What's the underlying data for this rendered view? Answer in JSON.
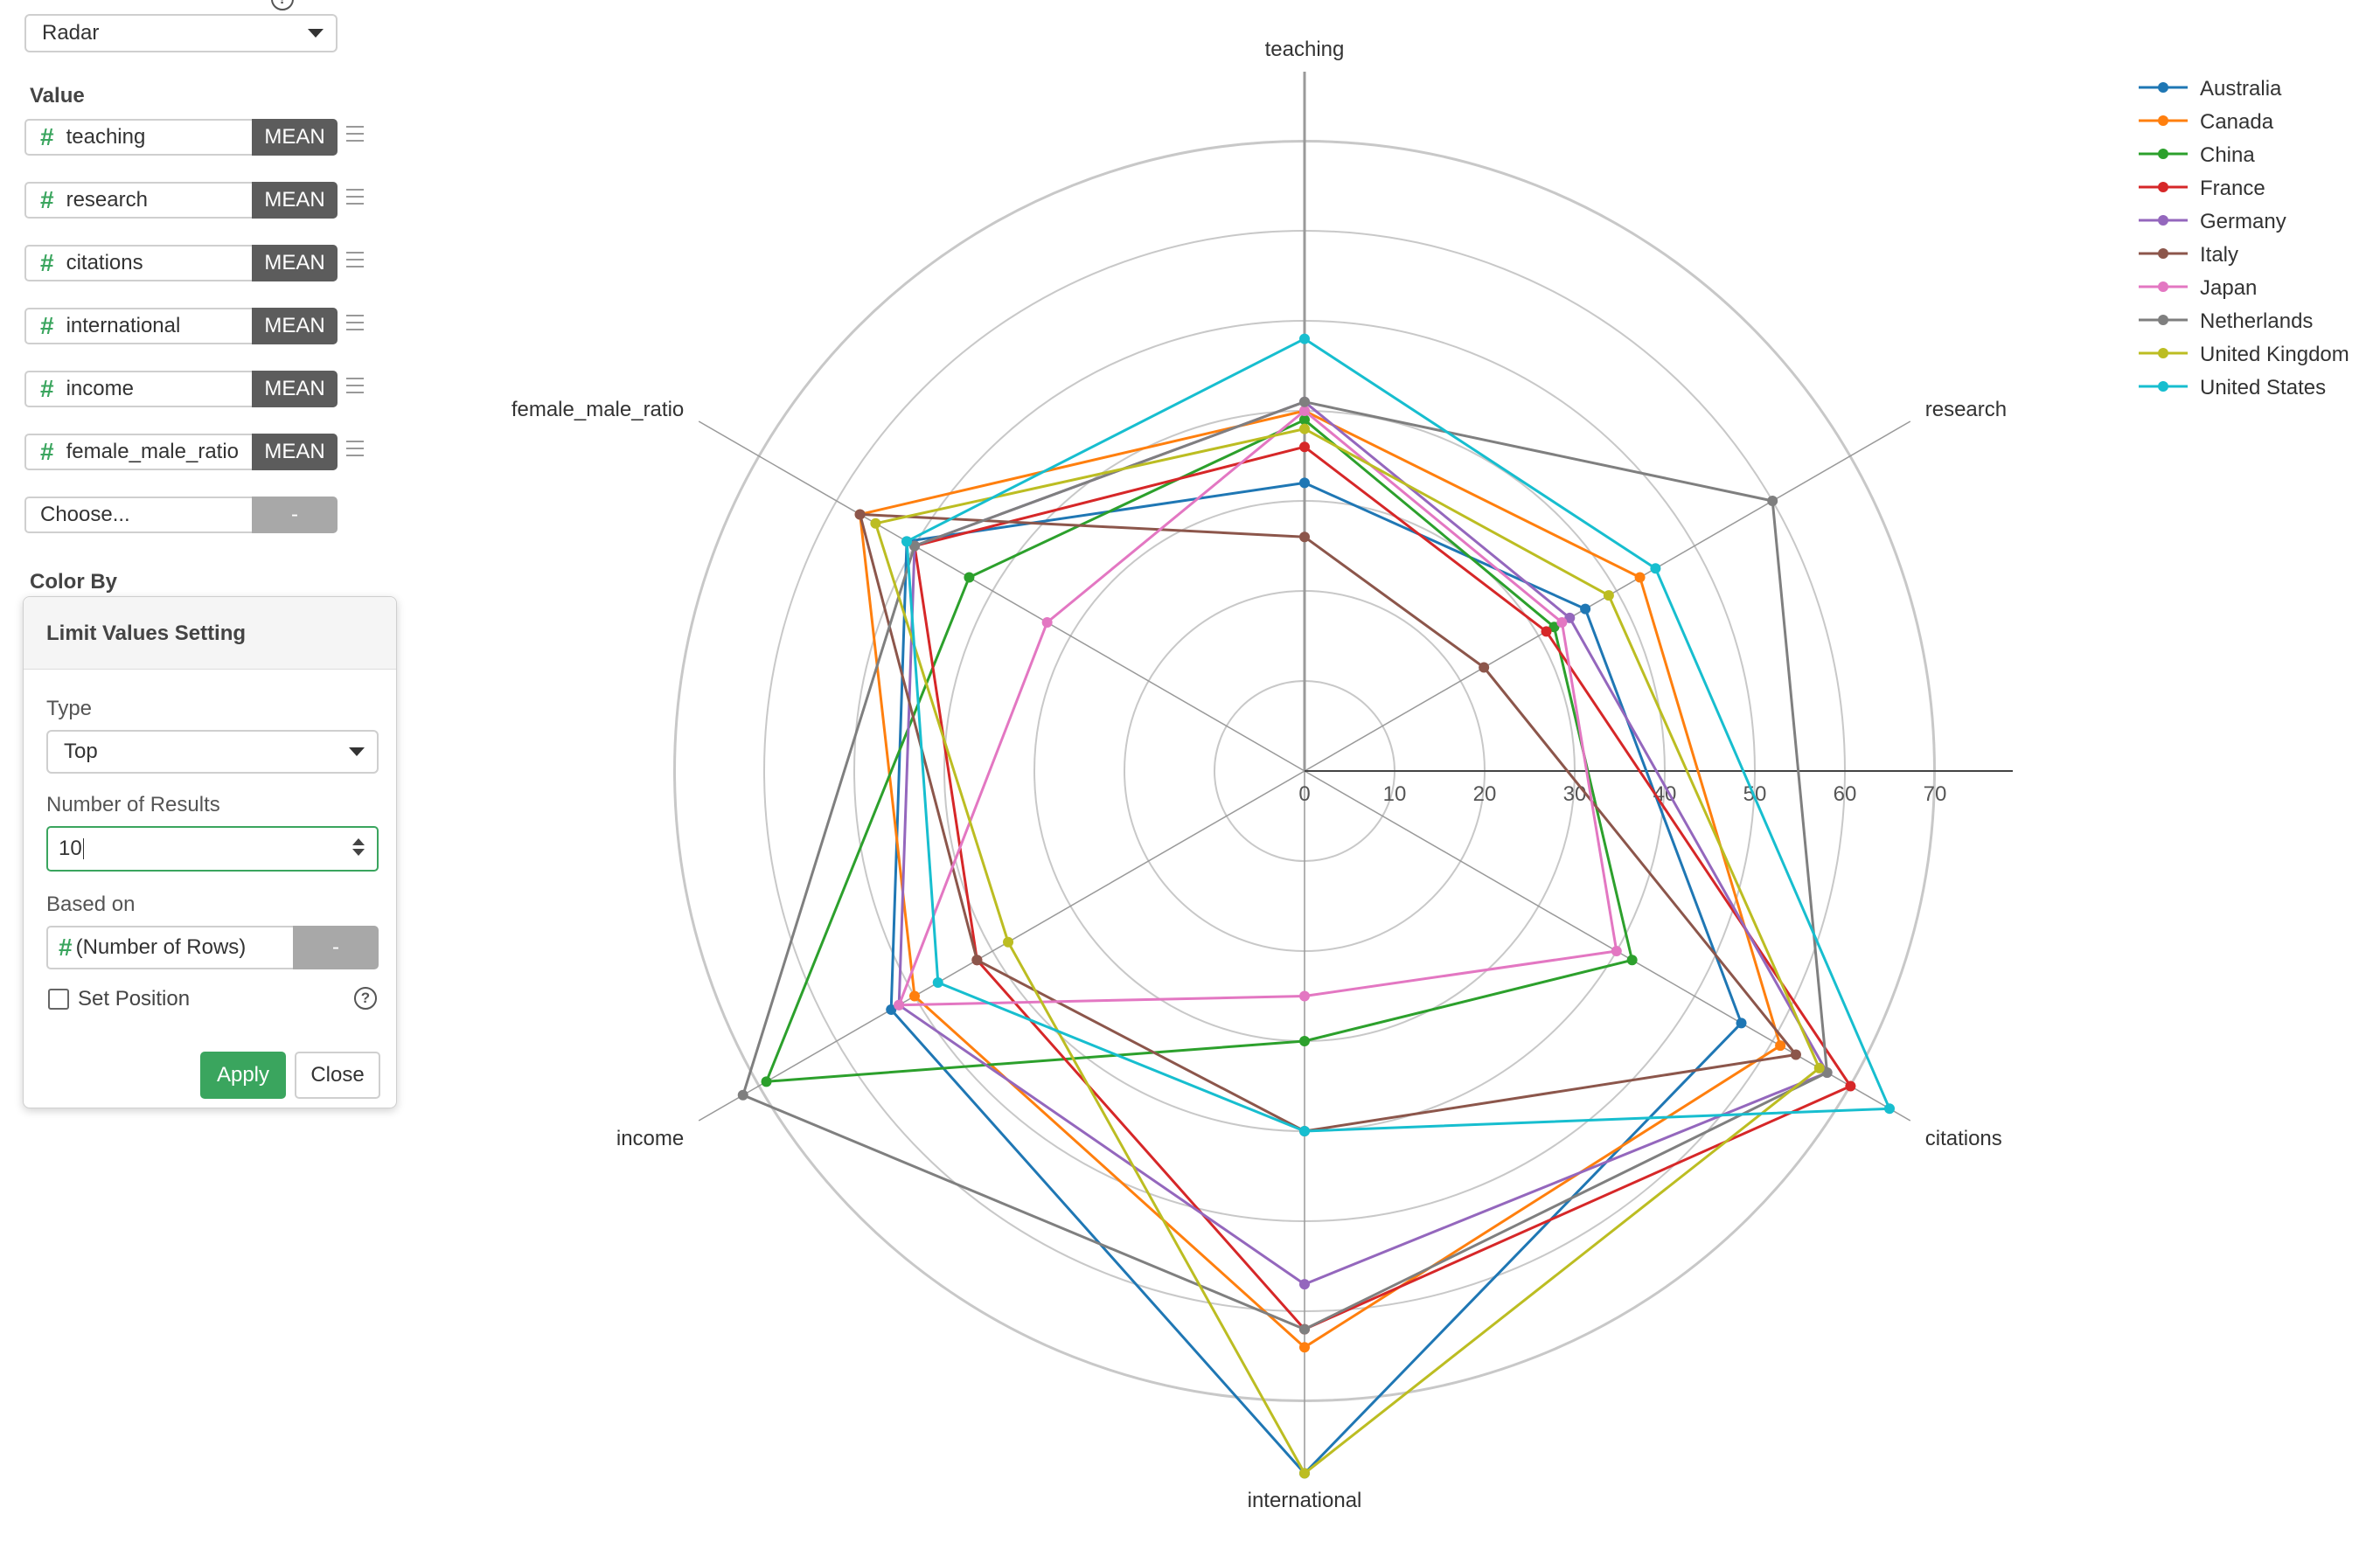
{
  "chart_type_select": {
    "value": "Radar"
  },
  "value_section": {
    "label": "Value",
    "rows": [
      {
        "column": "teaching",
        "agg": "MEAN"
      },
      {
        "column": "research",
        "agg": "MEAN"
      },
      {
        "column": "citations",
        "agg": "MEAN"
      },
      {
        "column": "international",
        "agg": "MEAN"
      },
      {
        "column": "income",
        "agg": "MEAN"
      },
      {
        "column": "female_male_ratio",
        "agg": "MEAN"
      }
    ],
    "choose": {
      "label": "Choose...",
      "button": "-"
    }
  },
  "color_by": {
    "label": "Color By"
  },
  "limit_popover": {
    "title": "Limit Values Setting",
    "type_label": "Type",
    "type_value": "Top",
    "number_label": "Number of Results",
    "number_value": "10",
    "based_on_label": "Based on",
    "based_on_value": "(Number of Rows)",
    "based_on_button": "-",
    "set_position_label": "Set Position",
    "help_glyph": "?",
    "apply_label": "Apply",
    "close_label": "Close"
  },
  "chart_data": {
    "type": "radar",
    "axes": [
      "teaching",
      "research",
      "citations",
      "international",
      "income",
      "female_male_ratio"
    ],
    "radial_ticks": [
      "0",
      "10",
      "20",
      "30",
      "40",
      "50",
      "60",
      "70"
    ],
    "rmax": 70,
    "legend_position": "top-right",
    "series": [
      {
        "name": "Australia",
        "color": "#1f77b4",
        "values": [
          32,
          36,
          56,
          78,
          53,
          51
        ]
      },
      {
        "name": "Canada",
        "color": "#ff7f0e",
        "values": [
          40,
          43,
          61,
          64,
          50,
          57
        ]
      },
      {
        "name": "China",
        "color": "#2ca02c",
        "values": [
          39,
          32,
          42,
          30,
          69,
          43
        ]
      },
      {
        "name": "France",
        "color": "#d62728",
        "values": [
          36,
          31,
          70,
          62,
          42,
          50
        ]
      },
      {
        "name": "Germany",
        "color": "#9467bd",
        "values": [
          41,
          34,
          67,
          57,
          52,
          50
        ]
      },
      {
        "name": "Italy",
        "color": "#8c564b",
        "values": [
          26,
          23,
          63,
          40,
          42,
          57
        ]
      },
      {
        "name": "Japan",
        "color": "#e377c2",
        "values": [
          40,
          33,
          40,
          25,
          52,
          33
        ]
      },
      {
        "name": "Netherlands",
        "color": "#7f7f7f",
        "values": [
          41,
          60,
          67,
          62,
          72,
          50
        ]
      },
      {
        "name": "United Kingdom",
        "color": "#bcbd22",
        "values": [
          38,
          39,
          66,
          78,
          38,
          55
        ]
      },
      {
        "name": "United States",
        "color": "#17becf",
        "values": [
          48,
          45,
          75,
          40,
          47,
          51
        ]
      }
    ]
  }
}
